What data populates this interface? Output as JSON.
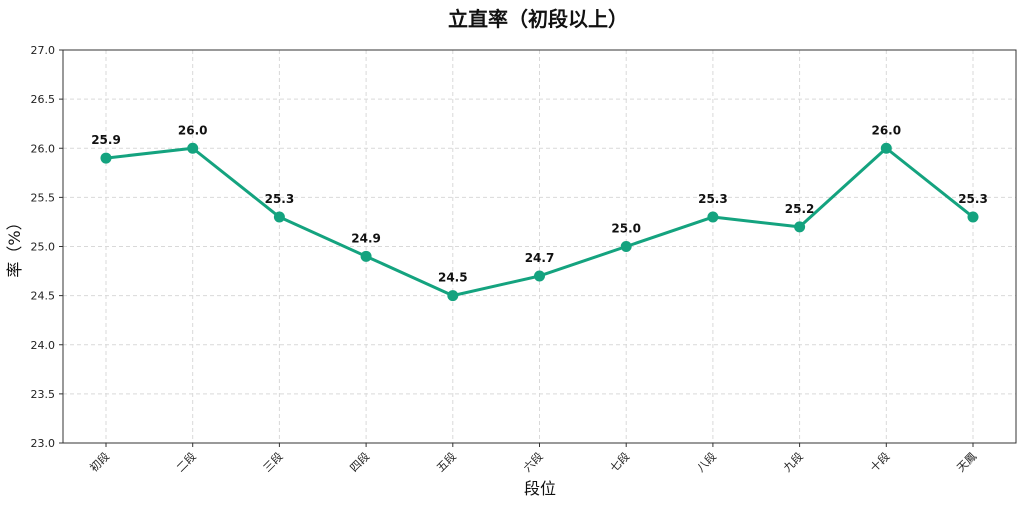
{
  "chart_data": {
    "type": "line",
    "title": "立直率（初段以上）",
    "xlabel": "段位",
    "ylabel": "率（%）",
    "categories": [
      "初段",
      "二段",
      "三段",
      "四段",
      "五段",
      "六段",
      "七段",
      "八段",
      "九段",
      "十段",
      "天鳳"
    ],
    "series": [
      {
        "values": [
          25.9,
          26.0,
          25.3,
          24.9,
          24.5,
          24.7,
          25.0,
          25.3,
          25.2,
          26.0,
          25.3
        ]
      }
    ],
    "ylim": [
      23.0,
      27.0
    ],
    "yticks": [
      "23.0",
      "23.5",
      "24.0",
      "24.5",
      "25.0",
      "25.5",
      "26.0",
      "26.5",
      "27.0"
    ],
    "data_labels": [
      "25.9",
      "26.0",
      "25.3",
      "24.9",
      "24.5",
      "24.7",
      "25.0",
      "25.3",
      "25.2",
      "26.0",
      "25.3"
    ],
    "grid": true,
    "legend": "none",
    "color": "#14a37f"
  }
}
